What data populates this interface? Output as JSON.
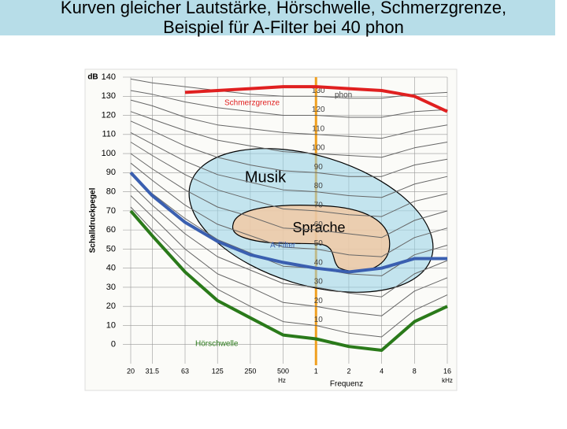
{
  "title_lines": [
    "Kurven gleicher Lautstärke, Hörschwelle, Schmerzgrenze,",
    "Beispiel für A-Filter bei 40 phon"
  ],
  "chart_data": {
    "type": "line",
    "y_unit": "dB",
    "ylabel": "Schalldruckpegel",
    "xlabel": "Frequenz",
    "x_unit_low": "Hz",
    "x_unit_high": "kHz",
    "xscale": "log",
    "grid": true,
    "x": [
      20,
      31.5,
      63,
      125,
      250,
      500,
      1000,
      2000,
      4000,
      8000,
      16000
    ],
    "xlim": [
      20,
      16000
    ],
    "xticks": [
      20,
      31.5,
      63,
      125,
      250,
      500,
      {
        "value": 1000,
        "label": "1"
      },
      {
        "value": 2000,
        "label": "2"
      },
      {
        "value": 4000,
        "label": "4"
      },
      {
        "value": 8000,
        "label": "8"
      },
      {
        "value": 16000,
        "label": "16"
      }
    ],
    "ylim": [
      -10,
      140
    ],
    "yticks": [
      0,
      10,
      20,
      30,
      40,
      50,
      60,
      70,
      80,
      90,
      100,
      110,
      120,
      130,
      140
    ],
    "phon_unit": "phon",
    "regions": [
      "Musik",
      "Sprache"
    ],
    "series": [
      {
        "name": "10",
        "color": "#666666",
        "line_width": 1,
        "values": [
          72,
          60,
          43,
          29,
          20,
          12,
          10,
          6,
          4,
          18,
          26
        ]
      },
      {
        "name": "20",
        "color": "#666666",
        "line_width": 1,
        "values": [
          78,
          67,
          50,
          37,
          30,
          22,
          20,
          17,
          15,
          28,
          35
        ]
      },
      {
        "name": "30",
        "color": "#666666",
        "line_width": 1,
        "values": [
          84,
          73,
          58,
          46,
          39,
          32,
          30,
          27,
          25,
          37,
          44
        ]
      },
      {
        "name": "40",
        "color": "#666666",
        "line_width": 1,
        "values": [
          89,
          79,
          66,
          55,
          48,
          41,
          40,
          37,
          36,
          47,
          52
        ]
      },
      {
        "name": "50",
        "color": "#666666",
        "line_width": 1,
        "values": [
          95,
          86,
          73,
          63,
          57,
          51,
          50,
          47,
          46,
          56,
          61
        ]
      },
      {
        "name": "60",
        "color": "#666666",
        "line_width": 1,
        "values": [
          100,
          92,
          81,
          72,
          67,
          61,
          60,
          58,
          56,
          65,
          70
        ]
      },
      {
        "name": "70",
        "color": "#666666",
        "line_width": 1,
        "values": [
          106,
          99,
          89,
          81,
          76,
          71,
          70,
          68,
          67,
          75,
          79
        ]
      },
      {
        "name": "80",
        "color": "#666666",
        "line_width": 1,
        "values": [
          111,
          105,
          96,
          89,
          85,
          81,
          80,
          78,
          77,
          84,
          88
        ]
      },
      {
        "name": "90",
        "color": "#666666",
        "line_width": 1,
        "values": [
          117,
          112,
          104,
          98,
          94,
          91,
          90,
          88,
          88,
          94,
          97
        ]
      },
      {
        "name": "100",
        "color": "#666666",
        "line_width": 1,
        "values": [
          122,
          118,
          112,
          107,
          104,
          101,
          100,
          99,
          98,
          103,
          106
        ]
      },
      {
        "name": "110",
        "color": "#666666",
        "line_width": 1,
        "values": [
          128,
          125,
          119,
          115,
          113,
          111,
          110,
          109,
          108,
          112,
          115
        ]
      },
      {
        "name": "120",
        "color": "#666666",
        "line_width": 1,
        "values": [
          133,
          131,
          127,
          124,
          122,
          120,
          120,
          119,
          119,
          122,
          123
        ]
      },
      {
        "name": "130",
        "color": "#666666",
        "line_width": 1,
        "values": [
          139,
          137,
          135,
          133,
          131,
          130,
          130,
          129,
          129,
          131,
          132
        ]
      },
      {
        "name": "Hörschwelle",
        "color": "#2a7a1a",
        "line_width": 4,
        "values": [
          70,
          57,
          38,
          23,
          14,
          5,
          3,
          -1,
          -3,
          12,
          20
        ]
      },
      {
        "name": "Schmerzgrenze",
        "color": "#e02020",
        "line_width": 4,
        "values": [
          null,
          null,
          132,
          133,
          134,
          135,
          135,
          134,
          133,
          130,
          122
        ]
      },
      {
        "name": "A-Filter",
        "color": "#3a5fb0",
        "line_width": 4,
        "values": [
          90,
          78,
          64,
          54,
          47,
          43,
          40,
          38,
          40,
          45,
          45
        ]
      }
    ]
  }
}
